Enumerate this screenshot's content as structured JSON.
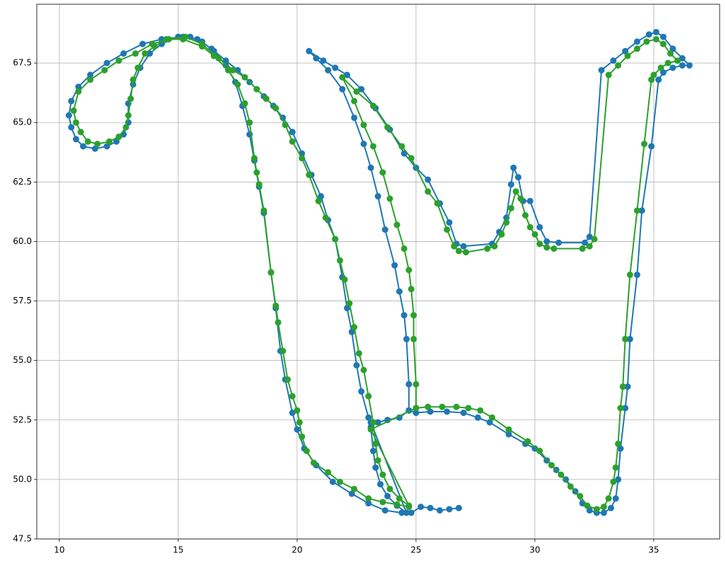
{
  "chart_data": {
    "type": "line",
    "grid": true,
    "markers": true,
    "xlim": [
      9.05,
      37.77
    ],
    "ylim": [
      47.5,
      69.97
    ],
    "xticks": [
      10,
      15,
      20,
      25,
      30,
      35
    ],
    "yticks": [
      47.5,
      {
        "value": 50,
        "label": "50.0"
      },
      52.5,
      {
        "value": 55,
        "label": "55.0"
      },
      57.5,
      {
        "value": 60,
        "label": "60.0"
      },
      62.5,
      {
        "value": 65,
        "label": "65.0"
      },
      67.5
    ],
    "series": [
      {
        "color": "#1f77b4",
        "x": [
          26.8,
          26.4,
          26,
          25.6,
          25.2,
          24.8,
          24.4,
          23.7,
          23,
          22.3,
          21.5,
          20.8,
          20.3,
          20,
          19.8,
          19.5,
          19.3,
          19.1,
          18.9,
          18.6,
          18.4,
          18.2,
          18,
          17.7,
          17.4,
          17,
          16.5,
          16,
          15.5,
          15,
          14.3,
          13.8,
          13.4,
          13.1,
          12.9,
          12.9,
          12.7,
          12.4,
          12,
          11.5,
          11,
          10.7,
          10.5,
          10.4,
          10.5,
          10.8,
          11.3,
          12,
          12.7,
          13.5,
          14.3,
          15.2,
          15.8,
          16.4,
          17,
          17.5,
          18,
          18.6,
          19,
          19.4,
          19.8,
          20.2,
          20.6,
          21,
          21.3,
          21.6,
          21.9,
          22.1,
          22.3,
          22.5,
          22.7,
          23,
          23.1,
          23.2,
          23.3,
          23.5,
          23.8,
          24.2,
          24.6,
          23.1,
          23.4,
          23.8,
          24.3,
          24.7,
          24.7,
          24.6,
          24.5,
          24.3,
          24.1,
          23.7,
          23.4,
          23.1,
          22.8,
          22.4,
          21.9,
          21.3,
          20.8,
          20.5,
          21.1,
          21.6,
          22.1,
          22.7,
          23.3,
          23.9,
          24.5,
          25,
          25.5,
          26,
          26.4,
          26.7,
          27,
          28.2,
          28.5,
          28.8,
          29,
          29.1,
          29.3,
          29.5,
          29.8,
          30.2,
          30.5,
          31,
          32.1,
          32.3,
          32.8,
          33.3,
          33.8,
          34.3,
          34.8,
          35.1,
          35.4,
          35.8,
          36.2,
          36.5,
          36.2,
          35.8,
          35.4,
          35.2,
          34.9,
          34.5,
          34.3,
          34,
          33.9,
          33.8,
          33.6,
          33.5,
          33.4,
          33.2,
          32.9,
          32.6,
          32.3,
          32,
          31.7,
          31.3,
          30.9,
          30.5,
          30,
          29.6,
          28.9,
          28.1,
          27.6,
          27,
          26.3,
          25.6,
          25,
          24.7
        ],
        "values": [
          48.8,
          48.75,
          48.7,
          48.8,
          48.85,
          48.6,
          48.6,
          48.7,
          49,
          49.4,
          49.9,
          50.6,
          51.3,
          52.1,
          52.8,
          54.2,
          55.4,
          57.2,
          58.7,
          61.2,
          62.3,
          63.4,
          64.5,
          65.7,
          66.7,
          67.4,
          68,
          68.4,
          68.6,
          68.6,
          68.3,
          67.9,
          67.3,
          66.6,
          65.8,
          65,
          64.5,
          64.2,
          64,
          63.9,
          64,
          64.3,
          64.8,
          65.3,
          65.9,
          66.5,
          67,
          67.5,
          67.9,
          68.3,
          68.5,
          68.6,
          68.5,
          68.1,
          67.6,
          67.2,
          66.7,
          66.1,
          65.7,
          65.2,
          64.6,
          63.7,
          62.8,
          61.9,
          60.9,
          60.1,
          58.5,
          57.2,
          56.2,
          54.8,
          53.7,
          52.6,
          52.2,
          51.2,
          50.5,
          49.8,
          49.3,
          48.9,
          48.6,
          52.4,
          52.4,
          52.5,
          52.6,
          52.9,
          54,
          55.9,
          56.9,
          57.9,
          59,
          60.5,
          61.9,
          63.1,
          64.1,
          65.2,
          66.4,
          67.2,
          67.7,
          68,
          67.6,
          67.3,
          67,
          66.4,
          65.6,
          64.7,
          63.7,
          63.1,
          62.6,
          61.6,
          60.8,
          59.9,
          59.8,
          59.9,
          60.4,
          61,
          62.4,
          63.1,
          62.7,
          61.7,
          61.7,
          60.6,
          60,
          59.95,
          59.95,
          60.2,
          67.2,
          67.6,
          68,
          68.4,
          68.7,
          68.8,
          68.6,
          68.1,
          67.7,
          67.4,
          67.4,
          67.3,
          67.1,
          66.8,
          64,
          61.3,
          58.6,
          55.9,
          53.9,
          53,
          51.3,
          50,
          49.2,
          48.8,
          48.6,
          48.6,
          48.7,
          49,
          49.5,
          50,
          50.4,
          50.8,
          51.3,
          51.5,
          51.9,
          52.4,
          52.6,
          52.8,
          52.85,
          52.85,
          52.8,
          52.9
        ]
      },
      {
        "color": "#2ca02c",
        "x": [
          24.7,
          24.2,
          23.6,
          23,
          22.4,
          21.8,
          21.3,
          20.7,
          20.4,
          20.2,
          20.1,
          20,
          19.8,
          19.6,
          19.4,
          19.2,
          19.1,
          18.9,
          18.6,
          18.4,
          18.3,
          18.2,
          18,
          17.8,
          17.5,
          17.1,
          16.5,
          16,
          15.2,
          14.5,
          14,
          13.6,
          13.3,
          13.1,
          13,
          12.9,
          12.8,
          12.5,
          12.1,
          11.6,
          11.2,
          10.9,
          10.7,
          10.6,
          10.8,
          11.3,
          11.9,
          12.5,
          13.2,
          13.9,
          14.6,
          15.3,
          16,
          16.7,
          17.3,
          17.8,
          18.3,
          18.7,
          19.1,
          19.5,
          19.8,
          20.2,
          20.5,
          20.9,
          21.2,
          21.6,
          21.8,
          22,
          22.2,
          22.4,
          22.6,
          22.8,
          23,
          23.2,
          23.3,
          23.4,
          23.6,
          23.9,
          24.3,
          24.7,
          23.1,
          25,
          25,
          24.9,
          24.9,
          24.8,
          24.7,
          24.5,
          24.2,
          23.9,
          23.6,
          23.2,
          22.8,
          22.4,
          21.9,
          22.5,
          23.2,
          23.8,
          24.4,
          24.8,
          25.5,
          25.9,
          26.3,
          26.6,
          26.8,
          27.1,
          28,
          28.3,
          28.6,
          28.8,
          29,
          29.2,
          29.4,
          29.6,
          29.8,
          30,
          30.2,
          30.5,
          30.8,
          32,
          32.3,
          32.5,
          33.1,
          33.5,
          33.9,
          34.3,
          34.7,
          35.1,
          35.4,
          35.7,
          36,
          35.6,
          35.3,
          35,
          34.9,
          34.6,
          34.3,
          34,
          33.8,
          33.7,
          33.6,
          33.5,
          33.4,
          33.3,
          33.1,
          32.9,
          32.6,
          32.2,
          31.9,
          31.5,
          31.1,
          30.7,
          30.2,
          29.7,
          28.9,
          28.2,
          27.7,
          27.2,
          26.7,
          26.1,
          25.5,
          25
        ],
        "values": [
          48.85,
          48.95,
          49.05,
          49.2,
          49.6,
          49.9,
          50.3,
          50.7,
          51.2,
          51.8,
          52.4,
          52.9,
          53.5,
          54.2,
          55.4,
          56.6,
          57.3,
          58.7,
          61.3,
          62.4,
          62.9,
          63.5,
          65,
          65.8,
          66.6,
          67.2,
          67.8,
          68.2,
          68.5,
          68.5,
          68.2,
          67.9,
          67.3,
          66.8,
          66,
          65.3,
          64.8,
          64.4,
          64.2,
          64.1,
          64.2,
          64.6,
          65,
          65.5,
          66.3,
          66.8,
          67.2,
          67.6,
          67.9,
          68.3,
          68.5,
          68.6,
          68.3,
          67.7,
          67.2,
          66.9,
          66.4,
          66,
          65.6,
          64.9,
          64.2,
          63.5,
          62.8,
          61.7,
          61,
          60.1,
          59.2,
          58.4,
          57.4,
          56.4,
          55.3,
          54.6,
          53.5,
          52.4,
          51.5,
          50.8,
          50.2,
          49.6,
          49.2,
          48.9,
          52.1,
          53,
          54,
          55.9,
          56.9,
          58,
          58.8,
          59.7,
          60.7,
          61.8,
          62.9,
          64,
          64.9,
          65.9,
          66.9,
          66.3,
          65.7,
          64.8,
          64,
          63.5,
          62.1,
          61.6,
          60.5,
          59.8,
          59.6,
          59.55,
          59.7,
          59.8,
          60.3,
          60.8,
          61.4,
          62.1,
          61.8,
          61.1,
          60.6,
          60.3,
          59.9,
          59.75,
          59.7,
          59.7,
          59.8,
          60.1,
          67,
          67.4,
          67.8,
          68.1,
          68.4,
          68.5,
          68.3,
          67.9,
          67.6,
          67.5,
          67.3,
          67,
          66.8,
          64.1,
          61.3,
          58.6,
          55.9,
          53.9,
          53,
          51.5,
          50.5,
          49.9,
          49.2,
          48.85,
          48.75,
          48.9,
          49.3,
          49.7,
          50.2,
          50.6,
          51.2,
          51.6,
          52.1,
          52.6,
          52.9,
          53,
          53.05,
          53.05,
          53.05,
          53
        ]
      }
    ]
  }
}
